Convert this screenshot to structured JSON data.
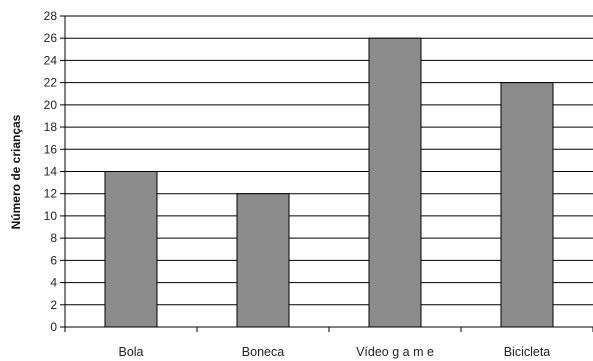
{
  "chart_data": {
    "type": "bar",
    "categories": [
      "Bola",
      "Boneca",
      "Vídeo g a m e",
      "Bicicleta"
    ],
    "values": [
      14,
      12,
      26,
      22
    ],
    "title": "",
    "xlabel": "",
    "ylabel": "Número de crianças",
    "ylim": [
      0,
      28
    ],
    "ytick_step": 2,
    "grid": true,
    "legend": "none",
    "bar_color": "#8c8c8c",
    "bar_edge_color": "#000000"
  }
}
